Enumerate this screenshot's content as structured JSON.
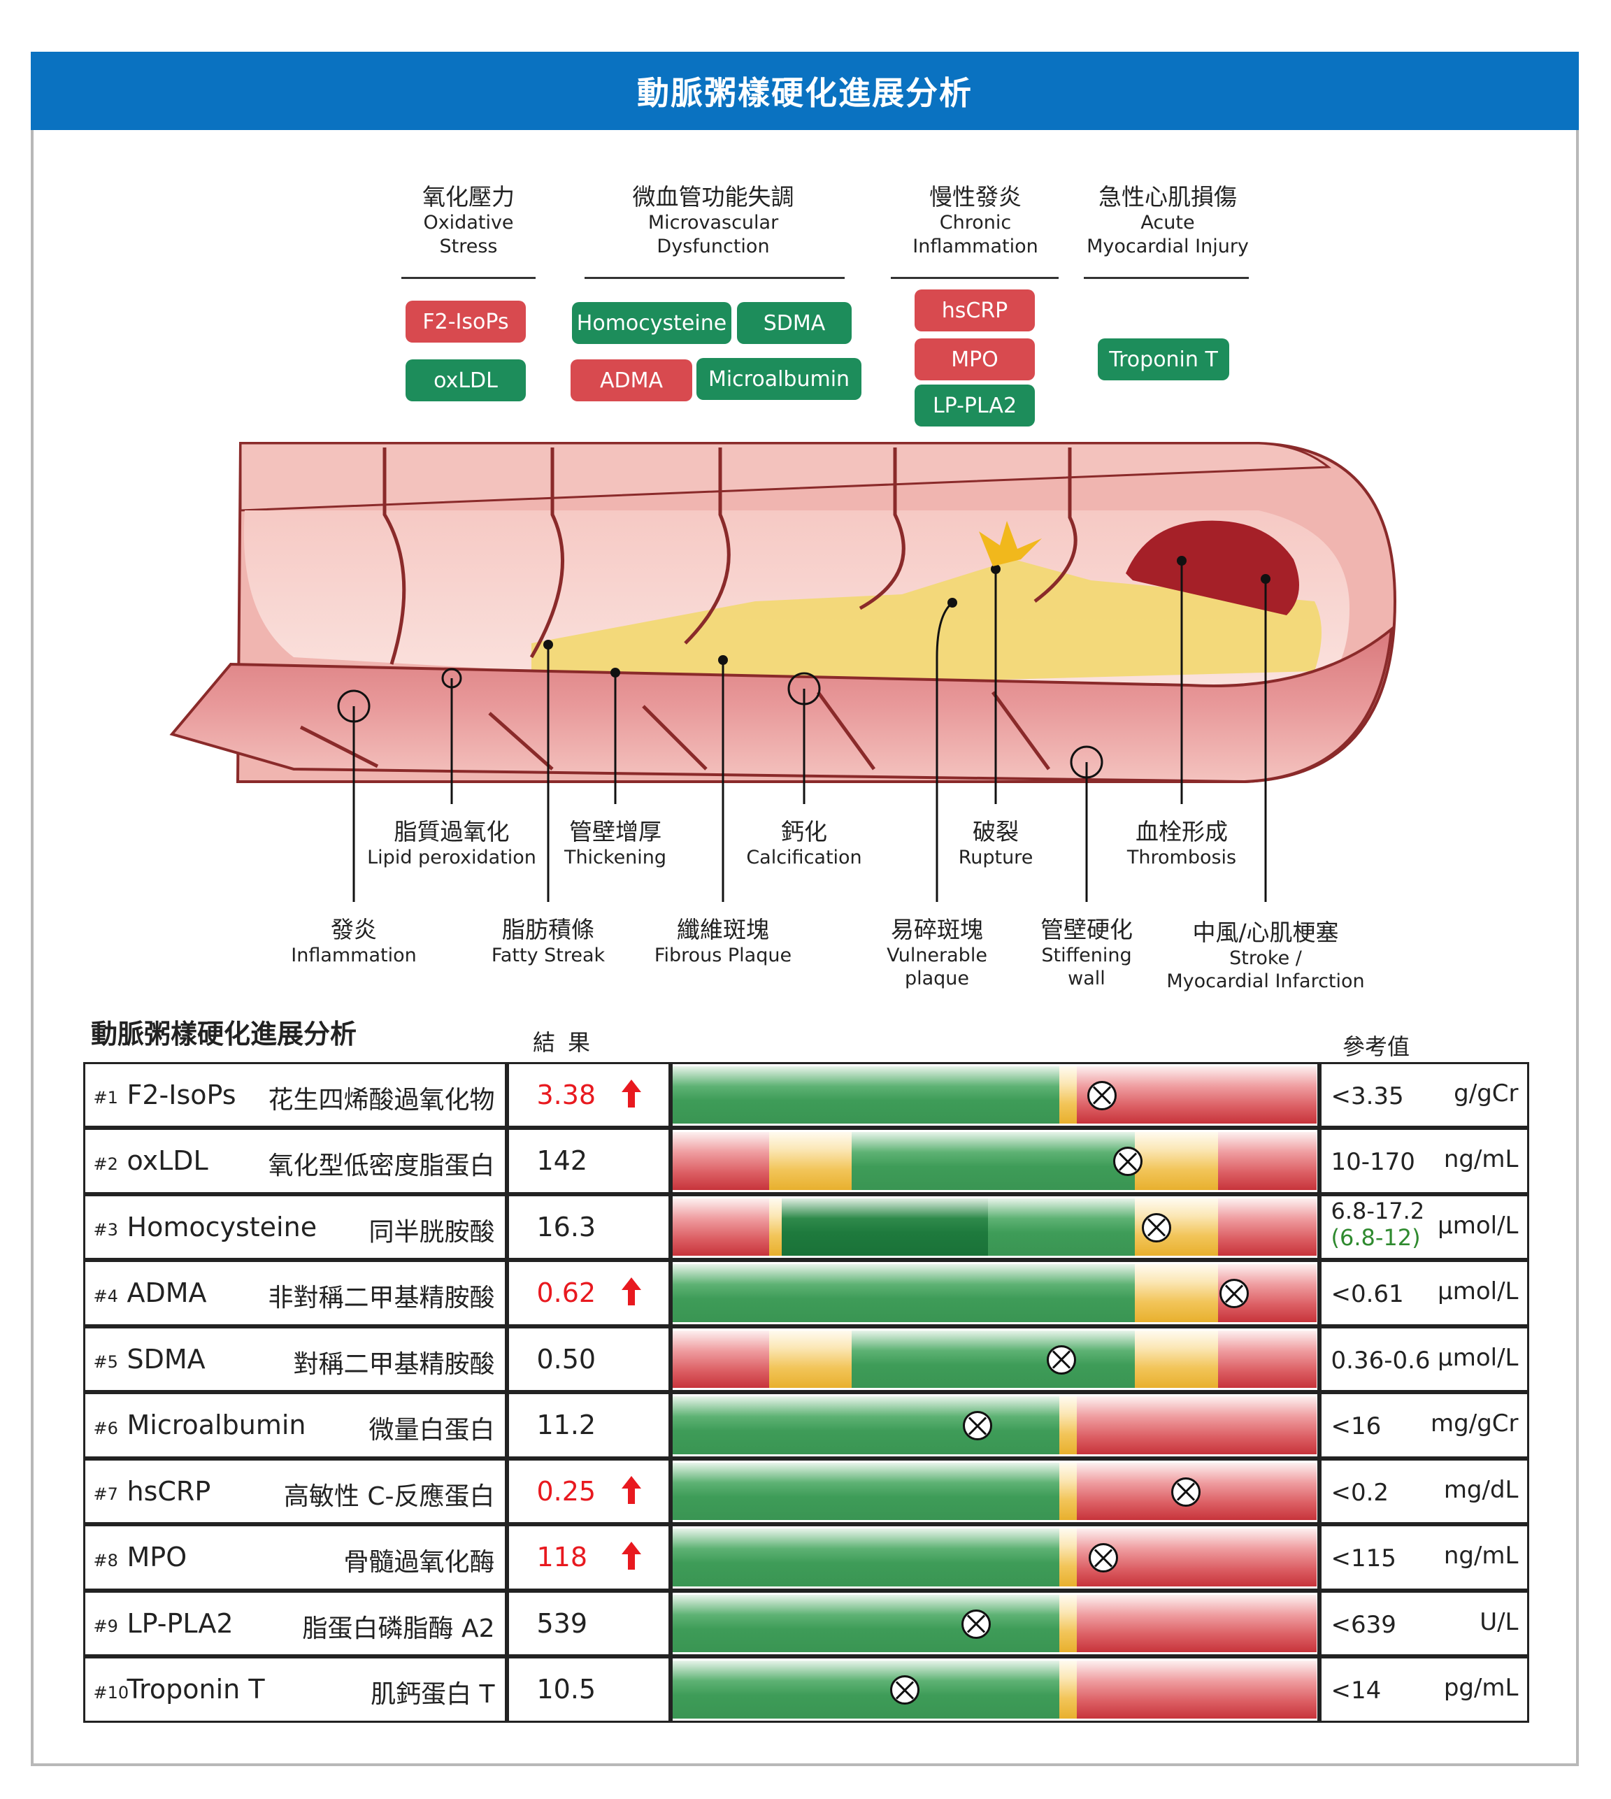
{
  "banner_title": "動脈粥樣硬化進展分析",
  "groups": [
    {
      "zh": "氧化壓力",
      "en1": "Oxidative",
      "en2": "Stress"
    },
    {
      "zh": "微血管功能失調",
      "en1": "Microvascular",
      "en2": "Dysfunction"
    },
    {
      "zh": "慢性發炎",
      "en1": "Chronic",
      "en2": "Inflammation"
    },
    {
      "zh": "急性心肌損傷",
      "en1": "Acute",
      "en2": "Myocardial Injury"
    }
  ],
  "pills": [
    {
      "label": "F2-IsoPs",
      "color": "red"
    },
    {
      "label": "oxLDL",
      "color": "green"
    },
    {
      "label": "Homocysteine",
      "color": "green"
    },
    {
      "label": "SDMA",
      "color": "green"
    },
    {
      "label": "ADMA",
      "color": "red"
    },
    {
      "label": "Microalbumin",
      "color": "green"
    },
    {
      "label": "hsCRP",
      "color": "red"
    },
    {
      "label": "MPO",
      "color": "red"
    },
    {
      "label": "LP-PLA2",
      "color": "green"
    },
    {
      "label": "Troponin T",
      "color": "green"
    }
  ],
  "upper_labels": [
    {
      "zh": "脂質過氧化",
      "en": "Lipid peroxidation"
    },
    {
      "zh": "管壁增厚",
      "en": "Thickening"
    },
    {
      "zh": "鈣化",
      "en": "Calcification"
    },
    {
      "zh": "破裂",
      "en": "Rupture"
    },
    {
      "zh": "血栓形成",
      "en": "Thrombosis"
    }
  ],
  "lower_labels": [
    {
      "zh": "發炎",
      "en1": "Inflammation",
      "en2": ""
    },
    {
      "zh": "脂肪積條",
      "en1": "Fatty Streak",
      "en2": ""
    },
    {
      "zh": "纖維斑塊",
      "en1": "Fibrous Plaque",
      "en2": ""
    },
    {
      "zh": "易碎斑塊",
      "en1": "Vulnerable",
      "en2": "plaque"
    },
    {
      "zh": "管壁硬化",
      "en1": "Stiffening",
      "en2": "wall"
    },
    {
      "zh": "中風/心肌梗塞",
      "en1": "Stroke /",
      "en2": "Myocardial Infarction"
    }
  ],
  "table": {
    "title": "動脈粥樣硬化進展分析",
    "result_header": "結果",
    "reference_header": "參考值",
    "rows": [
      {
        "num": "#1",
        "abbr": "F2-IsoPs",
        "cn": "花生四烯酸過氧化物",
        "value": "3.38",
        "high": true,
        "ref": "<3.35",
        "ref_alt": "",
        "unit": "g/gCr",
        "bar": "A",
        "marker": 0.66
      },
      {
        "num": "#2",
        "abbr": "oxLDL",
        "cn": "氧化型低密度脂蛋白",
        "value": "142",
        "high": false,
        "ref": "10-170",
        "ref_alt": "",
        "unit": "ng/mL",
        "bar": "B",
        "marker": 0.7
      },
      {
        "num": "#3",
        "abbr": "Homocysteine",
        "cn": "同半胱胺酸",
        "value": "16.3",
        "high": false,
        "ref": "6.8-17.2",
        "ref_alt": "(6.8-12)",
        "unit": "μmol/L",
        "bar": "C",
        "marker": 0.745
      },
      {
        "num": "#4",
        "abbr": "ADMA",
        "cn": "非對稱二甲基精胺酸",
        "value": "0.62",
        "high": true,
        "ref": "<0.61",
        "ref_alt": "",
        "unit": "μmol/L",
        "bar": "D",
        "marker": 0.865
      },
      {
        "num": "#5",
        "abbr": "SDMA",
        "cn": "對稱二甲基精胺酸",
        "value": "0.50",
        "high": false,
        "ref": "0.36-0.6",
        "ref_alt": "",
        "unit": "μmol/L",
        "bar": "B",
        "marker": 0.597
      },
      {
        "num": "#6",
        "abbr": "Microalbumin",
        "cn": "微量白蛋白",
        "value": "11.2",
        "high": false,
        "ref": "<16",
        "ref_alt": "",
        "unit": "mg/gCr",
        "bar": "A",
        "marker": 0.467
      },
      {
        "num": "#7",
        "abbr": "hsCRP",
        "cn": "高敏性 C-反應蛋白",
        "value": "0.25",
        "high": true,
        "ref": "<0.2",
        "ref_alt": "",
        "unit": "mg/dL",
        "bar": "A",
        "marker": 0.79
      },
      {
        "num": "#8",
        "abbr": "MPO",
        "cn": "骨髓過氧化酶",
        "value": "118",
        "high": true,
        "ref": "<115",
        "ref_alt": "",
        "unit": "ng/mL",
        "bar": "A",
        "marker": 0.662
      },
      {
        "num": "#9",
        "abbr": "LP-PLA2",
        "cn": "脂蛋白磷脂酶 A2",
        "value": "539",
        "high": false,
        "ref": "<639",
        "ref_alt": "",
        "unit": "U/L",
        "bar": "A",
        "marker": 0.465
      },
      {
        "num": "#10",
        "abbr": "Troponin T",
        "cn": "肌鈣蛋白 T",
        "value": "10.5",
        "high": false,
        "ref": "<14",
        "ref_alt": "",
        "unit": "pg/mL",
        "bar": "A",
        "marker": 0.354
      }
    ]
  },
  "colors": {
    "banner": "#0a72c1",
    "high": "#e8191f",
    "pill_red": "#d84a4f",
    "pill_green": "#1d8d5b"
  }
}
